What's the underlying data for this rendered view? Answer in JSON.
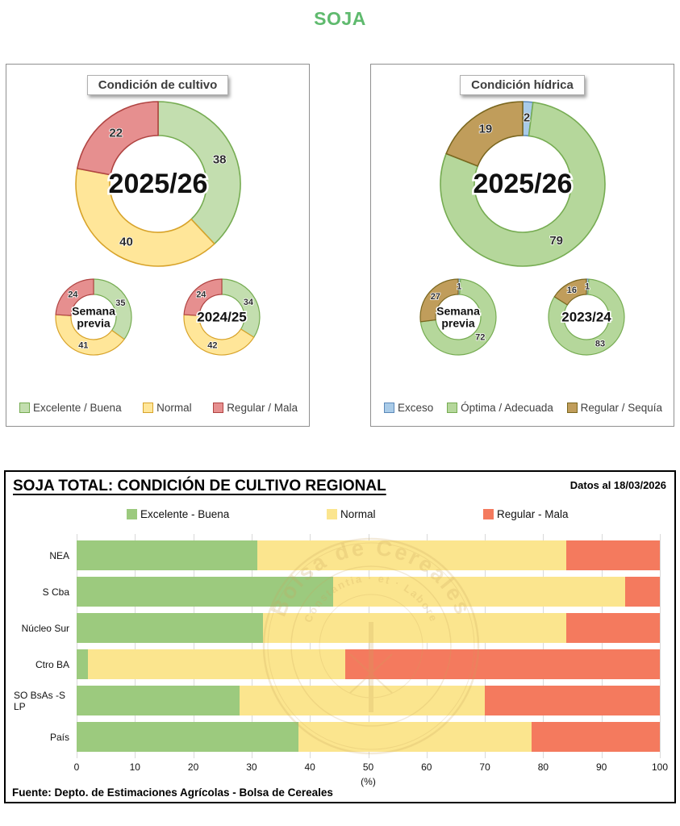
{
  "page": {
    "title": "SOJA",
    "title_color": "#5FBA6E"
  },
  "chart_data": [
    {
      "id": "condicion-cultivo",
      "type": "donut-group",
      "title": "Condición de cultivo",
      "legend": [
        "Excelente / Buena",
        "Normal",
        "Regular / Mala"
      ],
      "colors": {
        "fills": [
          "#C3DEAF",
          "#FFE699",
          "#E68F8F"
        ],
        "strokes": [
          "#76AC52",
          "#D8A32A",
          "#B04442"
        ]
      },
      "donuts": [
        {
          "label_lines": [
            "2025/26"
          ],
          "size": "large",
          "values": [
            38,
            40,
            22
          ]
        },
        {
          "label_lines": [
            "Semana",
            "previa"
          ],
          "size": "small",
          "values": [
            35,
            41,
            24
          ]
        },
        {
          "label_lines": [
            "2024/25"
          ],
          "size": "small",
          "values": [
            34,
            42,
            24
          ]
        }
      ]
    },
    {
      "id": "condicion-hidrica",
      "type": "donut-group",
      "title": "Condición hídrica",
      "legend": [
        "Exceso",
        "Óptima / Adecuada",
        "Regular / Sequía"
      ],
      "colors": {
        "fills": [
          "#A9CBE8",
          "#B5D79B",
          "#C09D5B"
        ],
        "strokes": [
          "#5C89B9",
          "#76AC52",
          "#7A671F"
        ]
      },
      "donuts": [
        {
          "label_lines": [
            "2025/26"
          ],
          "size": "large",
          "values": [
            2,
            79,
            19
          ]
        },
        {
          "label_lines": [
            "Semana",
            "previa"
          ],
          "size": "small",
          "values": [
            1,
            72,
            27
          ]
        },
        {
          "label_lines": [
            "2023/24"
          ],
          "size": "small",
          "values": [
            1,
            83,
            16
          ]
        }
      ]
    },
    {
      "id": "regional",
      "type": "stacked-bar-horizontal",
      "title": "SOJA TOTAL: CONDICIÓN DE CULTIVO REGIONAL",
      "note": "Datos al 18/03/2026",
      "legend": [
        "Excelente - Buena",
        "Normal",
        "Regular - Mala"
      ],
      "colors": [
        "#9CCA7E",
        "#FBE58E",
        "#F47A5E"
      ],
      "categories": [
        "NEA",
        "S Cba",
        "Núcleo Sur",
        "Ctro BA",
        "SO BsAs -S LP",
        "País"
      ],
      "series": [
        {
          "name": "Excelente - Buena",
          "values": [
            31,
            44,
            32,
            2,
            28,
            38
          ]
        },
        {
          "name": "Normal",
          "values": [
            53,
            50,
            52,
            44,
            42,
            40
          ]
        },
        {
          "name": "Regular - Mala",
          "values": [
            16,
            6,
            16,
            54,
            30,
            22
          ]
        }
      ],
      "xlim": [
        0,
        100
      ],
      "xticks": [
        0,
        10,
        20,
        30,
        40,
        50,
        60,
        70,
        80,
        90,
        100
      ],
      "xlabel": "(%)",
      "source": "Fuente: Depto. de Estimaciones Agrícolas - Bolsa de Cereales",
      "watermark": {
        "line1": "Bolsa de Cereales",
        "motto": "Constantia · et · Labore"
      }
    }
  ]
}
